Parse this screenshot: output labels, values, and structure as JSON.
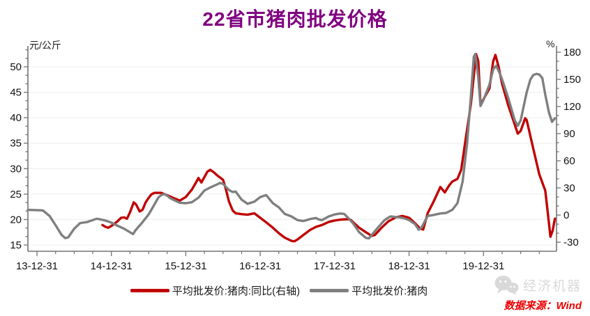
{
  "header": {
    "title": "22省市猪肉批发价格",
    "title_color": "#800080"
  },
  "footer": {
    "logo_text": "经济机器",
    "logo_color": "#D9D9D9",
    "source_text": "数据来源：Wind",
    "source_color": "#EE0000"
  },
  "chart_data": {
    "type": "line",
    "title": "22省市猪肉批发价格",
    "grid": "horizontal-light",
    "legend_position": "bottom",
    "axis_line_color": "#737373",
    "grid_color": "#ECECEC",
    "x_axis": {
      "tick_labels": [
        "13-12-31",
        "14-12-31",
        "15-12-31",
        "16-12-31",
        "17-12-31",
        "18-12-31",
        "19-12-31"
      ],
      "minor_ticks_per_year": 4,
      "note": "series x values are years since 2013-12-31"
    },
    "left_axis": {
      "unit": "元/公斤",
      "ticks": [
        50,
        45,
        40,
        35,
        30,
        25,
        20,
        15
      ],
      "min": 15,
      "max": 50
    },
    "right_axis": {
      "unit": "%",
      "ticks": [
        180,
        150,
        120,
        90,
        60,
        30,
        0,
        -30
      ],
      "min": -30,
      "max": 180
    },
    "series": [
      {
        "name": "平均批发价:猪肉:同比(右轴)",
        "axis": "right",
        "color": "#C00000",
        "points": [
          [
            0.88,
            -11
          ],
          [
            0.92,
            -13
          ],
          [
            0.96,
            -14
          ],
          [
            1.0,
            -12
          ],
          [
            1.08,
            -7
          ],
          [
            1.13,
            -3
          ],
          [
            1.17,
            -2.5
          ],
          [
            1.21,
            -4
          ],
          [
            1.25,
            3
          ],
          [
            1.3,
            14
          ],
          [
            1.33,
            12
          ],
          [
            1.38,
            4
          ],
          [
            1.42,
            6
          ],
          [
            1.46,
            14
          ],
          [
            1.5,
            19
          ],
          [
            1.54,
            23
          ],
          [
            1.58,
            24.5
          ],
          [
            1.67,
            24.5
          ],
          [
            1.75,
            22
          ],
          [
            1.83,
            19
          ],
          [
            1.92,
            16
          ],
          [
            2.0,
            20
          ],
          [
            2.08,
            28
          ],
          [
            2.13,
            35
          ],
          [
            2.17,
            41
          ],
          [
            2.21,
            36
          ],
          [
            2.29,
            48
          ],
          [
            2.33,
            50
          ],
          [
            2.38,
            47
          ],
          [
            2.42,
            44
          ],
          [
            2.5,
            39
          ],
          [
            2.54,
            28
          ],
          [
            2.58,
            15
          ],
          [
            2.63,
            5
          ],
          [
            2.67,
            2
          ],
          [
            2.75,
            1
          ],
          [
            2.83,
            0.5
          ],
          [
            2.92,
            2
          ],
          [
            3.0,
            -3
          ],
          [
            3.08,
            -8
          ],
          [
            3.17,
            -14
          ],
          [
            3.25,
            -20
          ],
          [
            3.33,
            -25
          ],
          [
            3.42,
            -28.5
          ],
          [
            3.46,
            -29
          ],
          [
            3.5,
            -27
          ],
          [
            3.58,
            -22
          ],
          [
            3.67,
            -16.5
          ],
          [
            3.75,
            -13
          ],
          [
            3.83,
            -11
          ],
          [
            3.92,
            -7.5
          ],
          [
            4.0,
            -6
          ],
          [
            4.08,
            -5
          ],
          [
            4.17,
            -4.5
          ],
          [
            4.21,
            -5
          ],
          [
            4.25,
            -8
          ],
          [
            4.33,
            -14
          ],
          [
            4.42,
            -19
          ],
          [
            4.5,
            -23
          ],
          [
            4.54,
            -22
          ],
          [
            4.63,
            -14
          ],
          [
            4.72,
            -7
          ],
          [
            4.82,
            -2.5
          ],
          [
            4.91,
            -1
          ],
          [
            5.0,
            -3
          ],
          [
            5.08,
            -9
          ],
          [
            5.15,
            -15
          ],
          [
            5.19,
            -16
          ],
          [
            5.25,
            2
          ],
          [
            5.33,
            15
          ],
          [
            5.42,
            31
          ],
          [
            5.48,
            25
          ],
          [
            5.54,
            33
          ],
          [
            5.58,
            37
          ],
          [
            5.65,
            40
          ],
          [
            5.7,
            50
          ],
          [
            5.75,
            78
          ],
          [
            5.83,
            122
          ],
          [
            5.88,
            162
          ],
          [
            5.9,
            178
          ],
          [
            5.93,
            170
          ],
          [
            5.96,
            122
          ],
          [
            6.0,
            128
          ],
          [
            6.08,
            140
          ],
          [
            6.13,
            170
          ],
          [
            6.16,
            177
          ],
          [
            6.2,
            165
          ],
          [
            6.25,
            145
          ],
          [
            6.33,
            122
          ],
          [
            6.42,
            100
          ],
          [
            6.46,
            90
          ],
          [
            6.5,
            93
          ],
          [
            6.56,
            107
          ],
          [
            6.58,
            105
          ],
          [
            6.67,
            73
          ],
          [
            6.75,
            45
          ],
          [
            6.79,
            36
          ],
          [
            6.83,
            27
          ],
          [
            6.86,
            5
          ],
          [
            6.9,
            -24
          ],
          [
            6.93,
            -17
          ],
          [
            6.96,
            -4
          ]
        ]
      },
      {
        "name": "平均批发价:猪肉",
        "axis": "left",
        "color": "#7F7F7F",
        "points": [
          [
            -0.12,
            21.9
          ],
          [
            0.0,
            21.85
          ],
          [
            0.08,
            21.8
          ],
          [
            0.17,
            20.7
          ],
          [
            0.25,
            18.9
          ],
          [
            0.33,
            17.0
          ],
          [
            0.38,
            16.35
          ],
          [
            0.42,
            16.5
          ],
          [
            0.5,
            18.2
          ],
          [
            0.58,
            19.3
          ],
          [
            0.67,
            19.5
          ],
          [
            0.75,
            19.9
          ],
          [
            0.8,
            20.15
          ],
          [
            0.83,
            20.1
          ],
          [
            0.92,
            19.8
          ],
          [
            1.0,
            19.4
          ],
          [
            1.08,
            18.8
          ],
          [
            1.17,
            18.2
          ],
          [
            1.25,
            17.5
          ],
          [
            1.29,
            17.15
          ],
          [
            1.33,
            18.0
          ],
          [
            1.42,
            19.5
          ],
          [
            1.5,
            21.0
          ],
          [
            1.58,
            23.0
          ],
          [
            1.63,
            24.3
          ],
          [
            1.67,
            24.8
          ],
          [
            1.71,
            25.0
          ],
          [
            1.75,
            24.7
          ],
          [
            1.79,
            24.2
          ],
          [
            1.83,
            23.9
          ],
          [
            1.92,
            23.3
          ],
          [
            2.0,
            23.2
          ],
          [
            2.08,
            23.4
          ],
          [
            2.17,
            24.3
          ],
          [
            2.25,
            25.7
          ],
          [
            2.33,
            26.3
          ],
          [
            2.42,
            26.9
          ],
          [
            2.46,
            27.2
          ],
          [
            2.5,
            27.0
          ],
          [
            2.58,
            25.8
          ],
          [
            2.63,
            25.4
          ],
          [
            2.67,
            25.5
          ],
          [
            2.75,
            23.9
          ],
          [
            2.83,
            23.1
          ],
          [
            2.92,
            23.5
          ],
          [
            3.0,
            24.4
          ],
          [
            3.08,
            24.8
          ],
          [
            3.17,
            23.2
          ],
          [
            3.25,
            22.4
          ],
          [
            3.33,
            21.1
          ],
          [
            3.42,
            20.6
          ],
          [
            3.5,
            19.9
          ],
          [
            3.58,
            19.7
          ],
          [
            3.67,
            20.1
          ],
          [
            3.75,
            20.3
          ],
          [
            3.79,
            20.0
          ],
          [
            3.83,
            19.9
          ],
          [
            3.92,
            20.6
          ],
          [
            4.0,
            21.0
          ],
          [
            4.08,
            21.2
          ],
          [
            4.13,
            21.1
          ],
          [
            4.17,
            20.5
          ],
          [
            4.25,
            19.2
          ],
          [
            4.33,
            17.5
          ],
          [
            4.42,
            16.4
          ],
          [
            4.46,
            16.3
          ],
          [
            4.5,
            17.0
          ],
          [
            4.58,
            18.4
          ],
          [
            4.67,
            19.9
          ],
          [
            4.75,
            20.6
          ],
          [
            4.83,
            20.5
          ],
          [
            4.92,
            20.3
          ],
          [
            5.0,
            19.9
          ],
          [
            5.08,
            19.1
          ],
          [
            5.13,
            18.0
          ],
          [
            5.17,
            18.5
          ],
          [
            5.25,
            20.7
          ],
          [
            5.33,
            20.9
          ],
          [
            5.42,
            21.2
          ],
          [
            5.5,
            21.3
          ],
          [
            5.58,
            21.9
          ],
          [
            5.65,
            23.2
          ],
          [
            5.72,
            27.5
          ],
          [
            5.78,
            35.0
          ],
          [
            5.83,
            44.0
          ],
          [
            5.87,
            52.0
          ],
          [
            5.89,
            52.5
          ],
          [
            5.93,
            48.0
          ],
          [
            5.96,
            42.3
          ],
          [
            6.0,
            43.5
          ],
          [
            6.08,
            46.5
          ],
          [
            6.13,
            49.5
          ],
          [
            6.17,
            50.2
          ],
          [
            6.21,
            49.0
          ],
          [
            6.25,
            47.5
          ],
          [
            6.33,
            44.0
          ],
          [
            6.42,
            39.5
          ],
          [
            6.46,
            38.4
          ],
          [
            6.5,
            39.5
          ],
          [
            6.58,
            45.0
          ],
          [
            6.63,
            47.5
          ],
          [
            6.67,
            48.4
          ],
          [
            6.71,
            48.6
          ],
          [
            6.75,
            48.5
          ],
          [
            6.79,
            47.8
          ],
          [
            6.83,
            44.5
          ],
          [
            6.88,
            41.0
          ],
          [
            6.92,
            39.2
          ],
          [
            6.96,
            39.9
          ]
        ]
      }
    ]
  }
}
